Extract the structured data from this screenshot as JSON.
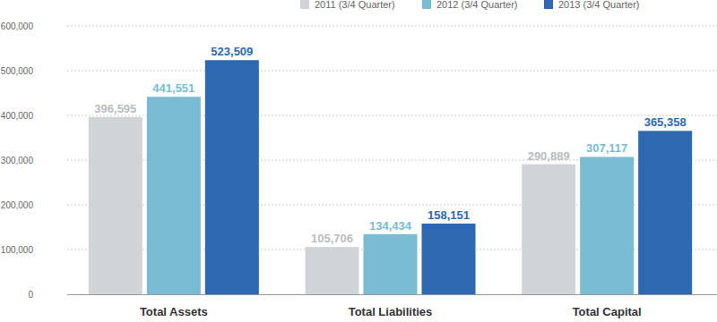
{
  "chart_data": {
    "type": "bar",
    "categories": [
      "Total Assets",
      "Total Liabilities",
      "Total Capital"
    ],
    "series": [
      {
        "name": "2011 (3/4 Quarter)",
        "color": "#d1d4d7",
        "values": [
          396595,
          105706,
          290889
        ],
        "value_labels": [
          "396,595",
          "105,706",
          "290,889"
        ]
      },
      {
        "name": "2012 (3/4 Quarter)",
        "color": "#79bbd2",
        "values": [
          441551,
          134434,
          307117
        ],
        "value_labels": [
          "441,551",
          "134,434",
          "307,117"
        ]
      },
      {
        "name": "2013 (3/4 Quarter)",
        "color": "#2e68b0",
        "values": [
          523509,
          158151,
          365358
        ],
        "value_labels": [
          "523,509",
          "158,151",
          "365,358"
        ]
      }
    ],
    "ylim": [
      0,
      600000
    ],
    "yticks": [
      0,
      {
        "value": 100000,
        "label": "100,000"
      },
      {
        "value": 200000,
        "label": "200,000"
      },
      {
        "value": 300000,
        "label": "300,000"
      },
      {
        "value": 400000,
        "label": "400,000"
      },
      {
        "value": 500000,
        "label": "500,000"
      },
      {
        "value": 600000,
        "label": "600,000"
      }
    ],
    "grid": true,
    "legend": "top",
    "data_labels": true
  }
}
